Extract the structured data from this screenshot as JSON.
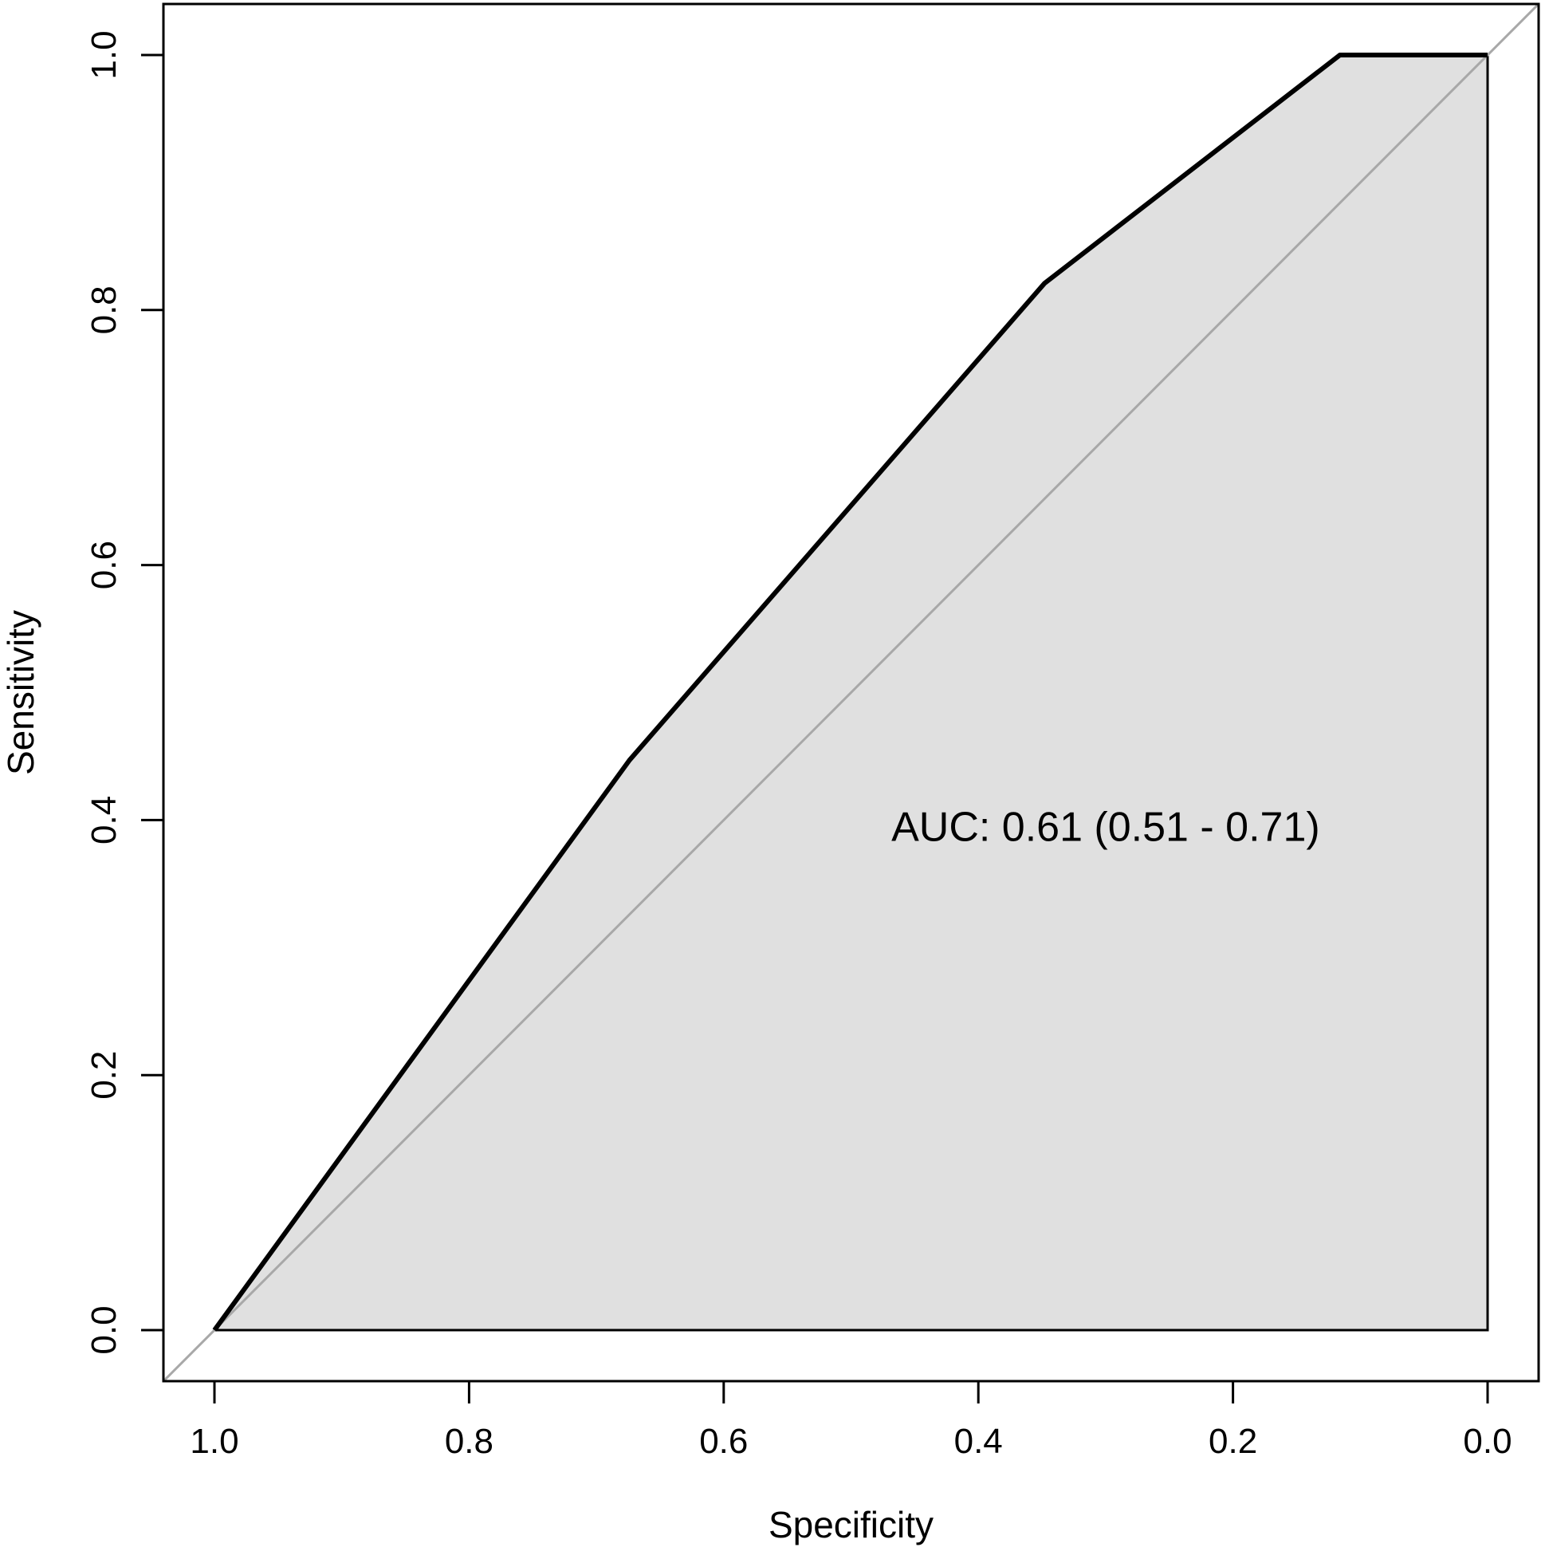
{
  "chart_data": {
    "type": "line",
    "title": "",
    "xlabel": "Specificity",
    "ylabel": "Sensitivity",
    "xlim": [
      1.0,
      0.0
    ],
    "ylim": [
      0.0,
      1.0
    ],
    "x_reversed": true,
    "grid": false,
    "legend": "none",
    "x_ticks": [
      "1.0",
      "0.8",
      "0.6",
      "0.4",
      "0.2",
      "0.0"
    ],
    "y_ticks": [
      "0.0",
      "0.2",
      "0.4",
      "0.6",
      "0.8",
      "1.0"
    ],
    "series": [
      {
        "x": [
          1.0,
          0.674,
          0.348,
          0.116,
          0.0
        ],
        "y": [
          0.0,
          0.447,
          0.821,
          1.0,
          1.0
        ],
        "color": "#000000"
      }
    ],
    "reference_line": {
      "x": [
        1.0,
        0.0
      ],
      "y": [
        0.0,
        1.0
      ],
      "color": "#a8a8a8"
    },
    "fill_color": "#e0e0e0",
    "annotation": {
      "text": "AUC: 0.61 (0.51 - 0.71)",
      "x": 0.3,
      "y": 0.38
    }
  }
}
